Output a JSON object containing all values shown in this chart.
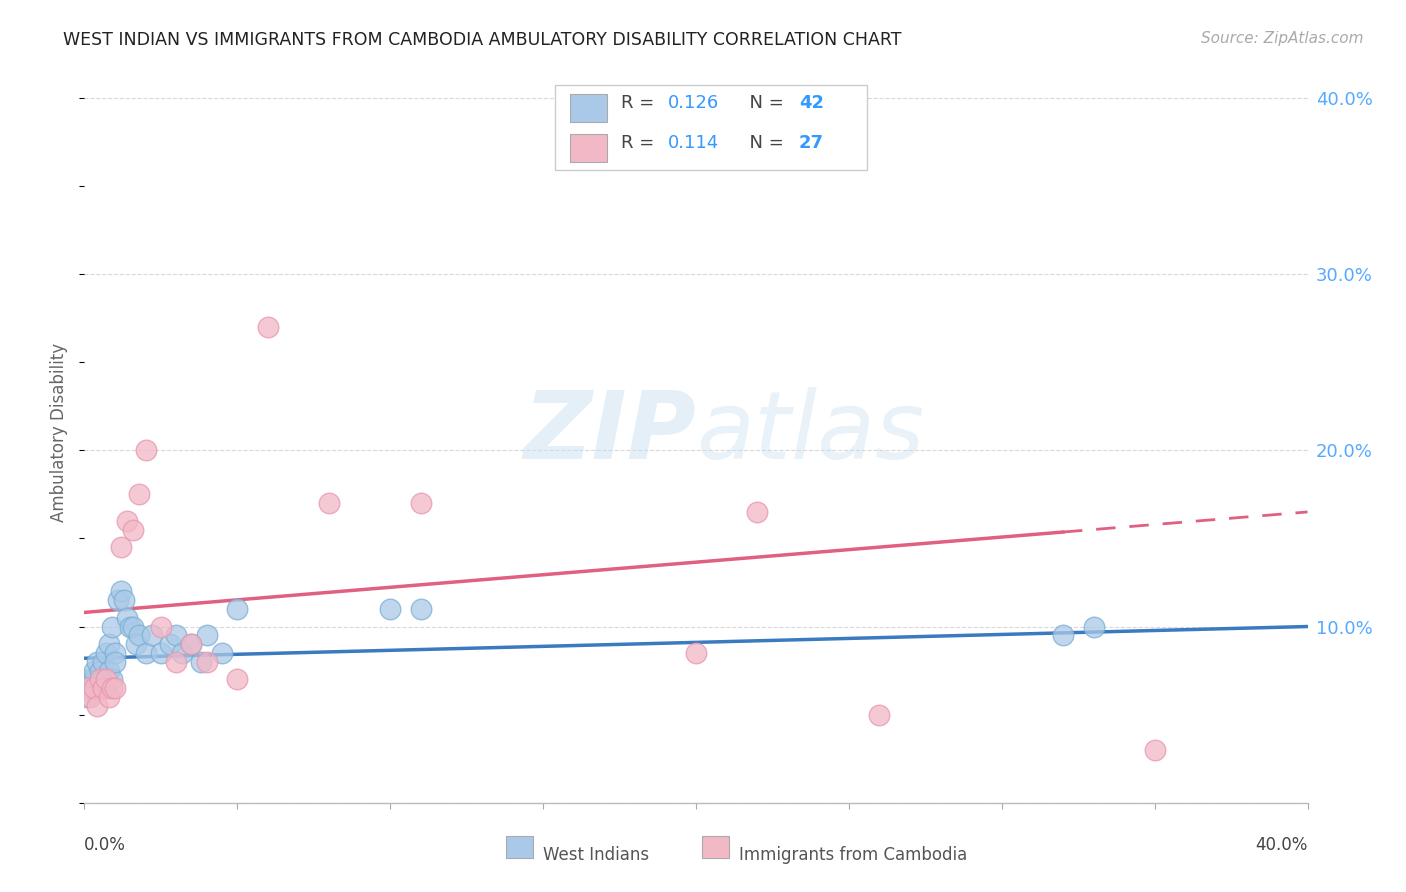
{
  "title": "WEST INDIAN VS IMMIGRANTS FROM CAMBODIA AMBULATORY DISABILITY CORRELATION CHART",
  "source": "Source: ZipAtlas.com",
  "ylabel": "Ambulatory Disability",
  "xlim": [
    0.0,
    0.4
  ],
  "ylim": [
    0.0,
    0.42
  ],
  "yticks": [
    0.0,
    0.1,
    0.2,
    0.3,
    0.4
  ],
  "ytick_labels": [
    "",
    "10.0%",
    "20.0%",
    "30.0%",
    "40.0%"
  ],
  "watermark": "ZIPatlas",
  "blue_color": "#aac9e8",
  "pink_color": "#f2b8c6",
  "blue_edge": "#7bafd4",
  "pink_edge": "#e896ae",
  "line_blue": "#3a7abf",
  "line_pink": "#e06080",
  "west_indians_x": [
    0.001,
    0.002,
    0.002,
    0.003,
    0.003,
    0.004,
    0.004,
    0.005,
    0.005,
    0.006,
    0.006,
    0.007,
    0.007,
    0.008,
    0.008,
    0.009,
    0.009,
    0.01,
    0.01,
    0.011,
    0.012,
    0.013,
    0.014,
    0.015,
    0.016,
    0.017,
    0.018,
    0.02,
    0.022,
    0.025,
    0.028,
    0.03,
    0.032,
    0.035,
    0.038,
    0.04,
    0.045,
    0.05,
    0.1,
    0.11,
    0.32,
    0.33
  ],
  "west_indians_y": [
    0.06,
    0.065,
    0.07,
    0.07,
    0.075,
    0.065,
    0.08,
    0.07,
    0.075,
    0.07,
    0.08,
    0.065,
    0.085,
    0.075,
    0.09,
    0.07,
    0.1,
    0.085,
    0.08,
    0.115,
    0.12,
    0.115,
    0.105,
    0.1,
    0.1,
    0.09,
    0.095,
    0.085,
    0.095,
    0.085,
    0.09,
    0.095,
    0.085,
    0.09,
    0.08,
    0.095,
    0.085,
    0.11,
    0.11,
    0.11,
    0.095,
    0.1
  ],
  "cambodia_x": [
    0.001,
    0.002,
    0.003,
    0.004,
    0.005,
    0.006,
    0.007,
    0.008,
    0.009,
    0.01,
    0.012,
    0.014,
    0.016,
    0.018,
    0.02,
    0.025,
    0.03,
    0.035,
    0.04,
    0.05,
    0.06,
    0.08,
    0.11,
    0.2,
    0.22,
    0.26,
    0.35
  ],
  "cambodia_y": [
    0.065,
    0.06,
    0.065,
    0.055,
    0.07,
    0.065,
    0.07,
    0.06,
    0.065,
    0.065,
    0.145,
    0.16,
    0.155,
    0.175,
    0.2,
    0.1,
    0.08,
    0.09,
    0.08,
    0.07,
    0.27,
    0.17,
    0.17,
    0.085,
    0.165,
    0.05,
    0.03
  ],
  "trend_blue_x0": 0.0,
  "trend_blue_y0": 0.082,
  "trend_blue_x1": 0.4,
  "trend_blue_y1": 0.1,
  "trend_pink_x0": 0.0,
  "trend_pink_y0": 0.108,
  "trend_pink_x1": 0.4,
  "trend_pink_y1": 0.165,
  "trend_pink_dash_start": 0.32,
  "background_color": "#ffffff",
  "grid_color": "#d8d8d8"
}
